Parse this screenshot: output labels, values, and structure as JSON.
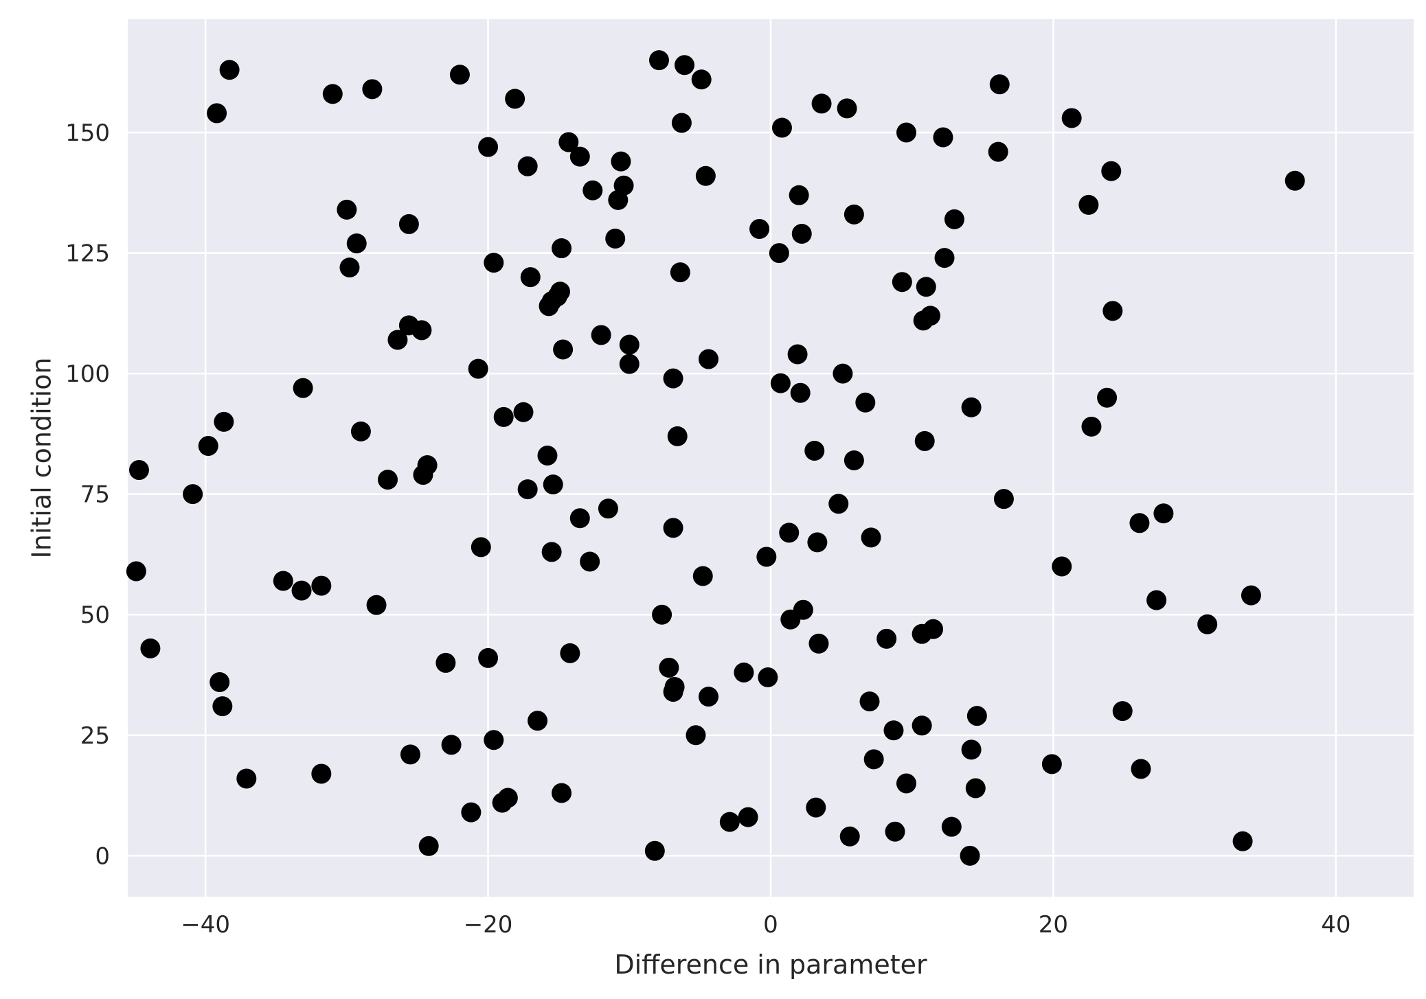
{
  "chart_data": {
    "type": "scatter",
    "title": "",
    "xlabel": "Difference in parameter",
    "ylabel": "Initial condition",
    "xlim": [
      -45.5,
      45.5
    ],
    "ylim": [
      -8.5,
      173.5
    ],
    "xticks": [
      -40,
      -20,
      0,
      20,
      40
    ],
    "xtick_labels": [
      "−40",
      "−20",
      "0",
      "20",
      "40"
    ],
    "yticks": [
      0,
      25,
      50,
      75,
      100,
      125,
      150
    ],
    "ytick_labels": [
      "0",
      "25",
      "50",
      "75",
      "100",
      "125",
      "150"
    ],
    "grid": true,
    "style": "seaborn-darkgrid",
    "background_color": "#eaeaf2",
    "grid_color": "#ffffff",
    "marker_color": "#000000",
    "points": [
      {
        "x": -38.3,
        "y": 163
      },
      {
        "x": -39.2,
        "y": 154
      },
      {
        "x": -31.0,
        "y": 158
      },
      {
        "x": -28.2,
        "y": 159
      },
      {
        "x": -22.0,
        "y": 162
      },
      {
        "x": -7.9,
        "y": 165
      },
      {
        "x": -6.1,
        "y": 164
      },
      {
        "x": -4.9,
        "y": 161
      },
      {
        "x": -18.1,
        "y": 157
      },
      {
        "x": 16.2,
        "y": 160
      },
      {
        "x": 3.6,
        "y": 156
      },
      {
        "x": 5.4,
        "y": 155
      },
      {
        "x": 21.3,
        "y": 153
      },
      {
        "x": -6.3,
        "y": 152
      },
      {
        "x": 0.8,
        "y": 151
      },
      {
        "x": 9.6,
        "y": 150
      },
      {
        "x": 12.2,
        "y": 149
      },
      {
        "x": -14.3,
        "y": 148
      },
      {
        "x": -20.0,
        "y": 147
      },
      {
        "x": 16.1,
        "y": 146
      },
      {
        "x": -13.5,
        "y": 145
      },
      {
        "x": -10.6,
        "y": 144
      },
      {
        "x": -17.2,
        "y": 143
      },
      {
        "x": 24.1,
        "y": 142
      },
      {
        "x": -4.6,
        "y": 141
      },
      {
        "x": 37.1,
        "y": 140
      },
      {
        "x": -10.4,
        "y": 139
      },
      {
        "x": -12.6,
        "y": 138
      },
      {
        "x": 2.0,
        "y": 137
      },
      {
        "x": -10.8,
        "y": 136
      },
      {
        "x": 22.5,
        "y": 135
      },
      {
        "x": -30.0,
        "y": 134
      },
      {
        "x": 5.9,
        "y": 133
      },
      {
        "x": 13.0,
        "y": 132
      },
      {
        "x": -25.6,
        "y": 131
      },
      {
        "x": -0.8,
        "y": 130
      },
      {
        "x": 2.2,
        "y": 129
      },
      {
        "x": -11.0,
        "y": 128
      },
      {
        "x": -29.3,
        "y": 127
      },
      {
        "x": -14.8,
        "y": 126
      },
      {
        "x": 0.6,
        "y": 125
      },
      {
        "x": 12.3,
        "y": 124
      },
      {
        "x": -19.6,
        "y": 123
      },
      {
        "x": -29.8,
        "y": 122
      },
      {
        "x": -6.4,
        "y": 121
      },
      {
        "x": -17.0,
        "y": 120
      },
      {
        "x": 9.3,
        "y": 119
      },
      {
        "x": 11.0,
        "y": 118
      },
      {
        "x": -14.9,
        "y": 117
      },
      {
        "x": -15.1,
        "y": 116
      },
      {
        "x": -15.5,
        "y": 115
      },
      {
        "x": -15.7,
        "y": 114
      },
      {
        "x": 24.2,
        "y": 113
      },
      {
        "x": 11.3,
        "y": 112
      },
      {
        "x": 10.8,
        "y": 111
      },
      {
        "x": -25.6,
        "y": 110
      },
      {
        "x": -24.7,
        "y": 109
      },
      {
        "x": -12.0,
        "y": 108
      },
      {
        "x": -26.4,
        "y": 107
      },
      {
        "x": -10.0,
        "y": 106
      },
      {
        "x": -14.7,
        "y": 105
      },
      {
        "x": 1.9,
        "y": 104
      },
      {
        "x": -4.4,
        "y": 103
      },
      {
        "x": -10.0,
        "y": 102
      },
      {
        "x": -20.7,
        "y": 101
      },
      {
        "x": 5.1,
        "y": 100
      },
      {
        "x": -6.9,
        "y": 99
      },
      {
        "x": 0.7,
        "y": 98
      },
      {
        "x": -33.1,
        "y": 97
      },
      {
        "x": 2.1,
        "y": 96
      },
      {
        "x": 23.8,
        "y": 95
      },
      {
        "x": 6.7,
        "y": 94
      },
      {
        "x": 14.2,
        "y": 93
      },
      {
        "x": -17.5,
        "y": 92
      },
      {
        "x": -18.9,
        "y": 91
      },
      {
        "x": -38.7,
        "y": 90
      },
      {
        "x": 22.7,
        "y": 89
      },
      {
        "x": -29.0,
        "y": 88
      },
      {
        "x": -6.6,
        "y": 87
      },
      {
        "x": 10.9,
        "y": 86
      },
      {
        "x": -39.8,
        "y": 85
      },
      {
        "x": 3.1,
        "y": 84
      },
      {
        "x": -15.8,
        "y": 83
      },
      {
        "x": 5.9,
        "y": 82
      },
      {
        "x": -24.3,
        "y": 81
      },
      {
        "x": -44.7,
        "y": 80
      },
      {
        "x": -24.6,
        "y": 79
      },
      {
        "x": -27.1,
        "y": 78
      },
      {
        "x": -15.4,
        "y": 77
      },
      {
        "x": -17.2,
        "y": 76
      },
      {
        "x": -40.9,
        "y": 75
      },
      {
        "x": 16.5,
        "y": 74
      },
      {
        "x": 4.8,
        "y": 73
      },
      {
        "x": -11.5,
        "y": 72
      },
      {
        "x": 27.8,
        "y": 71
      },
      {
        "x": -13.5,
        "y": 70
      },
      {
        "x": 26.1,
        "y": 69
      },
      {
        "x": -6.9,
        "y": 68
      },
      {
        "x": 1.3,
        "y": 67
      },
      {
        "x": 7.1,
        "y": 66
      },
      {
        "x": 3.3,
        "y": 65
      },
      {
        "x": -20.5,
        "y": 64
      },
      {
        "x": -15.5,
        "y": 63
      },
      {
        "x": -0.3,
        "y": 62
      },
      {
        "x": -12.8,
        "y": 61
      },
      {
        "x": 20.6,
        "y": 60
      },
      {
        "x": -44.9,
        "y": 59
      },
      {
        "x": -4.8,
        "y": 58
      },
      {
        "x": -34.5,
        "y": 57
      },
      {
        "x": -31.8,
        "y": 56
      },
      {
        "x": -33.2,
        "y": 55
      },
      {
        "x": 34.0,
        "y": 54
      },
      {
        "x": 27.3,
        "y": 53
      },
      {
        "x": -27.9,
        "y": 52
      },
      {
        "x": 2.3,
        "y": 51
      },
      {
        "x": -7.7,
        "y": 50
      },
      {
        "x": 1.4,
        "y": 49
      },
      {
        "x": 30.9,
        "y": 48
      },
      {
        "x": 11.5,
        "y": 47
      },
      {
        "x": 10.7,
        "y": 46
      },
      {
        "x": 8.2,
        "y": 45
      },
      {
        "x": -43.9,
        "y": 43
      },
      {
        "x": 3.4,
        "y": 44
      },
      {
        "x": -14.2,
        "y": 42
      },
      {
        "x": -20.0,
        "y": 41
      },
      {
        "x": -23.0,
        "y": 40
      },
      {
        "x": -7.2,
        "y": 39
      },
      {
        "x": -1.9,
        "y": 38
      },
      {
        "x": -0.2,
        "y": 37
      },
      {
        "x": -39.0,
        "y": 36
      },
      {
        "x": -6.8,
        "y": 35
      },
      {
        "x": -6.9,
        "y": 34
      },
      {
        "x": -4.4,
        "y": 33
      },
      {
        "x": 7.0,
        "y": 32
      },
      {
        "x": -38.8,
        "y": 31
      },
      {
        "x": 24.9,
        "y": 30
      },
      {
        "x": 14.6,
        "y": 29
      },
      {
        "x": -16.5,
        "y": 28
      },
      {
        "x": 10.7,
        "y": 27
      },
      {
        "x": 8.7,
        "y": 26
      },
      {
        "x": -5.3,
        "y": 25
      },
      {
        "x": -19.6,
        "y": 24
      },
      {
        "x": -22.6,
        "y": 23
      },
      {
        "x": 14.2,
        "y": 22
      },
      {
        "x": -25.5,
        "y": 21
      },
      {
        "x": 7.3,
        "y": 20
      },
      {
        "x": 19.9,
        "y": 19
      },
      {
        "x": 26.2,
        "y": 18
      },
      {
        "x": -31.8,
        "y": 17
      },
      {
        "x": -37.1,
        "y": 16
      },
      {
        "x": 9.6,
        "y": 15
      },
      {
        "x": 14.5,
        "y": 14
      },
      {
        "x": -14.8,
        "y": 13
      },
      {
        "x": -18.6,
        "y": 12
      },
      {
        "x": -19.0,
        "y": 11
      },
      {
        "x": 3.2,
        "y": 10
      },
      {
        "x": -21.2,
        "y": 9
      },
      {
        "x": -1.6,
        "y": 8
      },
      {
        "x": -2.9,
        "y": 7
      },
      {
        "x": 12.8,
        "y": 6
      },
      {
        "x": 8.8,
        "y": 5
      },
      {
        "x": 5.6,
        "y": 4
      },
      {
        "x": 33.4,
        "y": 3
      },
      {
        "x": -24.2,
        "y": 2
      },
      {
        "x": -8.2,
        "y": 1
      },
      {
        "x": 14.1,
        "y": 0
      }
    ]
  }
}
